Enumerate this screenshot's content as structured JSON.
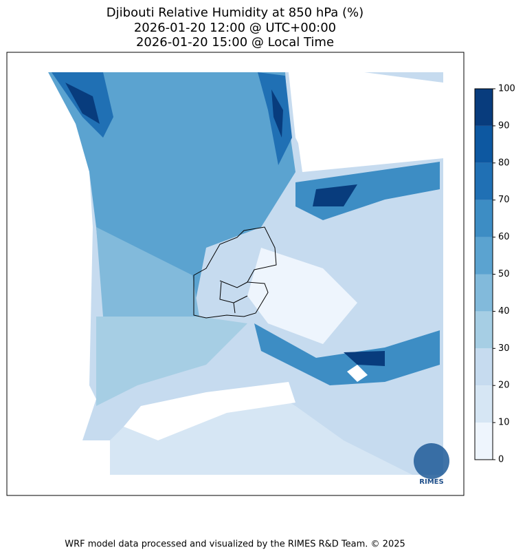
{
  "title": [
    "Djibouti Relative Humidity at 850 hPa (%)",
    "2026-01-20 12:00 @ UTC+00:00",
    "2026-01-20 15:00 @ Local Time"
  ],
  "colorbar": {
    "ticks": [
      0,
      10,
      20,
      30,
      40,
      50,
      60,
      70,
      80,
      90,
      100
    ],
    "colors": [
      "#eef5fd",
      "#d6e6f4",
      "#c6dbef",
      "#a6cee4",
      "#82badb",
      "#5ba3d0",
      "#3d8dc4",
      "#2070b4",
      "#0d58a1",
      "#083c7d"
    ],
    "ylim": [
      0,
      100
    ]
  },
  "logo": "RIMES",
  "footer": "WRF model data processed and visualized by the RIMES R&D Team. © 2025"
}
